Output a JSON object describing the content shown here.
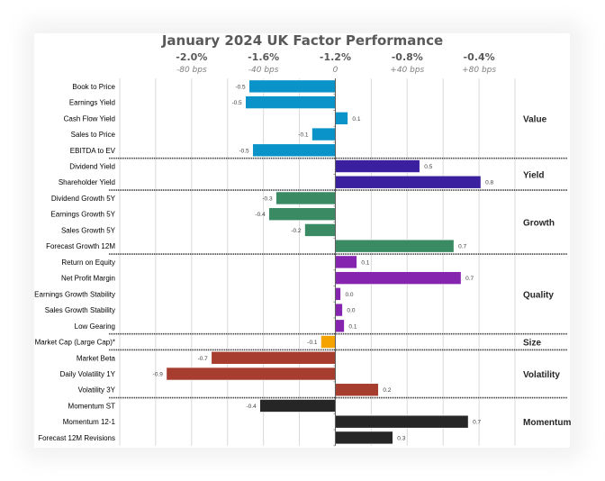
{
  "chart_data": {
    "type": "bar",
    "orientation": "horizontal",
    "title": "January 2024 UK Factor Performance",
    "xlabel": "",
    "ylabel": "",
    "xlim": [
      -1.2,
      1.0
    ],
    "grid": true,
    "legend": "none",
    "top_axis_ticks": [
      {
        "value": -0.8,
        "pct": "-2.0%",
        "bps": "-80 bps"
      },
      {
        "value": -0.4,
        "pct": "-1.6%",
        "bps": "-40 bps"
      },
      {
        "value": 0.0,
        "pct": "-1.2%",
        "bps": "0"
      },
      {
        "value": 0.4,
        "pct": "-0.8%",
        "bps": "+40 bps"
      },
      {
        "value": 0.8,
        "pct": "-0.4%",
        "bps": "+80 bps"
      }
    ],
    "groups": [
      {
        "name": "Value",
        "color": "#0a93c9",
        "factors": [
          {
            "label": "Book to Price",
            "value": -0.48,
            "value_label": "-0.5"
          },
          {
            "label": "Earnings Yield",
            "value": -0.5,
            "value_label": "-0.5"
          },
          {
            "label": "Cash Flow Yield",
            "value": 0.07,
            "value_label": "0.1"
          },
          {
            "label": "Sales to Price",
            "value": -0.13,
            "value_label": "-0.1"
          },
          {
            "label": "EBITDA to EV",
            "value": -0.46,
            "value_label": "-0.5"
          }
        ]
      },
      {
        "name": "Yield",
        "color": "#3a1f9e",
        "factors": [
          {
            "label": "Dividend Yield",
            "value": 0.47,
            "value_label": "0.5"
          },
          {
            "label": "Shareholder Yield",
            "value": 0.81,
            "value_label": "0.8"
          }
        ]
      },
      {
        "name": "Growth",
        "color": "#3a8a63",
        "factors": [
          {
            "label": "Dividend Growth 5Y",
            "value": -0.33,
            "value_label": "-0.3"
          },
          {
            "label": "Earnings Growth 5Y",
            "value": -0.37,
            "value_label": "-0.4"
          },
          {
            "label": "Sales Growth 5Y",
            "value": -0.17,
            "value_label": "-0.2"
          },
          {
            "label": "Forecast Growth 12M",
            "value": 0.66,
            "value_label": "0.7"
          }
        ]
      },
      {
        "name": "Quality",
        "color": "#8524ae",
        "factors": [
          {
            "label": "Return on Equity",
            "value": 0.12,
            "value_label": "0.1"
          },
          {
            "label": "Net Profit Margin",
            "value": 0.7,
            "value_label": "0.7"
          },
          {
            "label": "Earnings Growth Stability",
            "value": 0.03,
            "value_label": "0.0"
          },
          {
            "label": "Sales Growth Stability",
            "value": 0.04,
            "value_label": "0.0"
          },
          {
            "label": "Low Gearing",
            "value": 0.05,
            "value_label": "0.1"
          }
        ]
      },
      {
        "name": "Size",
        "color": "#f5a300",
        "factors": [
          {
            "label": "Market Cap (Large Cap)*",
            "value": -0.08,
            "value_label": "-0.1"
          }
        ]
      },
      {
        "name": "Volatility",
        "color": "#a63d2f",
        "factors": [
          {
            "label": "Market Beta",
            "value": -0.69,
            "value_label": "-0.7"
          },
          {
            "label": "Daily Volatility 1Y",
            "value": -0.94,
            "value_label": "-0.9"
          },
          {
            "label": "Volatility 3Y",
            "value": 0.24,
            "value_label": "0.2"
          }
        ]
      },
      {
        "name": "Momentum",
        "color": "#262626",
        "factors": [
          {
            "label": "Momentum ST",
            "value": -0.42,
            "value_label": "-0.4"
          },
          {
            "label": "Momentum 12-1",
            "value": 0.74,
            "value_label": "0.7"
          },
          {
            "label": "Forecast 12M Revisions",
            "value": 0.32,
            "value_label": "0.3"
          }
        ]
      }
    ]
  }
}
